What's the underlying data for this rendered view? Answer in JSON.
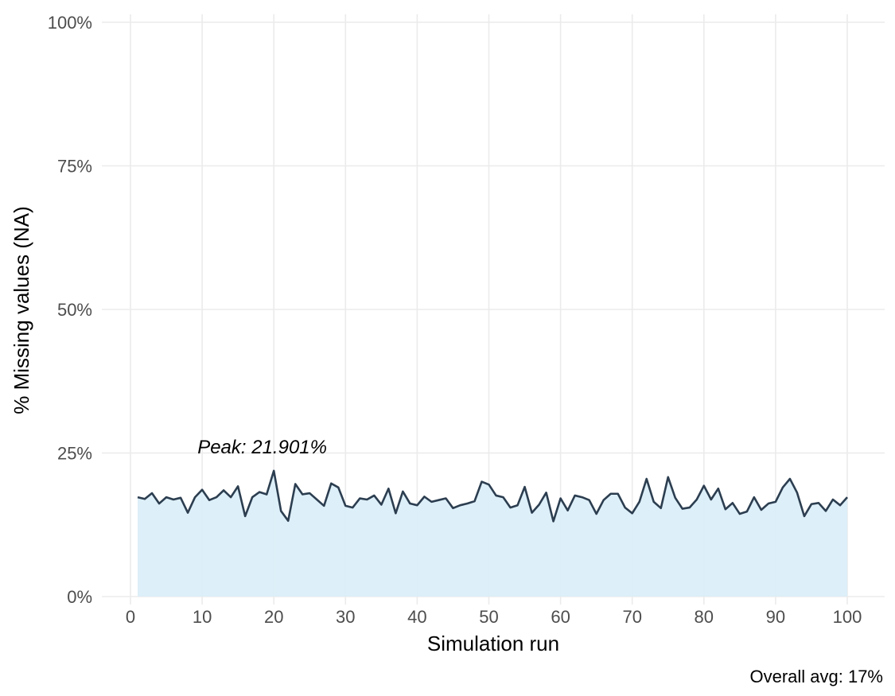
{
  "chart_data": {
    "type": "area",
    "xlabel": "Simulation run",
    "ylabel": "% Missing values (NA)",
    "xlim": [
      0,
      100
    ],
    "ylim": [
      0,
      100
    ],
    "x_ticks": [
      0,
      10,
      20,
      30,
      40,
      50,
      60,
      70,
      80,
      90,
      100
    ],
    "y_ticks": [
      0,
      25,
      50,
      75,
      100
    ],
    "x_tick_labels": [
      "0",
      "10",
      "20",
      "30",
      "40",
      "50",
      "60",
      "70",
      "80",
      "90",
      "100"
    ],
    "y_tick_labels": [
      "0%",
      "25%",
      "50%",
      "75%",
      "100%"
    ],
    "grid": true,
    "annotation": {
      "text": "Peak: 21.901%",
      "x": 20,
      "y": 21.901
    },
    "caption": "Overall avg: 17%",
    "colors": {
      "fill": "#dbeef8",
      "line": "#2c3e50",
      "grid": "#ebebeb"
    },
    "series": [
      {
        "x": [
          1,
          2,
          3,
          4,
          5,
          6,
          7,
          8,
          9,
          10,
          11,
          12,
          13,
          14,
          15,
          16,
          17,
          18,
          19,
          20,
          21,
          22,
          23,
          24,
          25,
          26,
          27,
          28,
          29,
          30,
          31,
          32,
          33,
          34,
          35,
          36,
          37,
          38,
          39,
          40,
          41,
          42,
          43,
          44,
          45,
          46,
          47,
          48,
          49,
          50,
          51,
          52,
          53,
          54,
          55,
          56,
          57,
          58,
          59,
          60,
          61,
          62,
          63,
          64,
          65,
          66,
          67,
          68,
          69,
          70,
          71,
          72,
          73,
          74,
          75,
          76,
          77,
          78,
          79,
          80,
          81,
          82,
          83,
          84,
          85,
          86,
          87,
          88,
          89,
          90,
          91,
          92,
          93,
          94,
          95,
          96,
          97,
          98,
          99,
          100
        ],
        "values": [
          17.3,
          17.0,
          18.0,
          16.2,
          17.3,
          16.9,
          17.2,
          14.6,
          17.3,
          18.6,
          16.8,
          17.3,
          18.5,
          17.3,
          19.2,
          14.0,
          17.3,
          18.2,
          17.8,
          21.901,
          14.9,
          13.2,
          19.6,
          17.8,
          18.0,
          16.9,
          15.8,
          19.7,
          19.0,
          15.8,
          15.5,
          17.1,
          16.9,
          17.6,
          16.0,
          18.8,
          14.5,
          18.3,
          16.2,
          15.9,
          17.4,
          16.5,
          16.8,
          17.1,
          15.4,
          15.9,
          16.2,
          16.6,
          20.0,
          19.5,
          17.6,
          17.3,
          15.5,
          15.9,
          19.1,
          14.6,
          16.0,
          18.1,
          13.1,
          17.1,
          15.0,
          17.6,
          17.3,
          16.8,
          14.4,
          16.8,
          17.9,
          17.9,
          15.5,
          14.5,
          16.5,
          20.5,
          16.5,
          15.4,
          20.8,
          17.2,
          15.3,
          15.5,
          16.9,
          19.3,
          16.9,
          18.8,
          15.2,
          16.3,
          14.4,
          14.8,
          17.3,
          15.1,
          16.2,
          16.5,
          19.0,
          20.5,
          18.1,
          14.0,
          16.1,
          16.3,
          14.9,
          16.9,
          15.9,
          17.3
        ]
      }
    ]
  }
}
